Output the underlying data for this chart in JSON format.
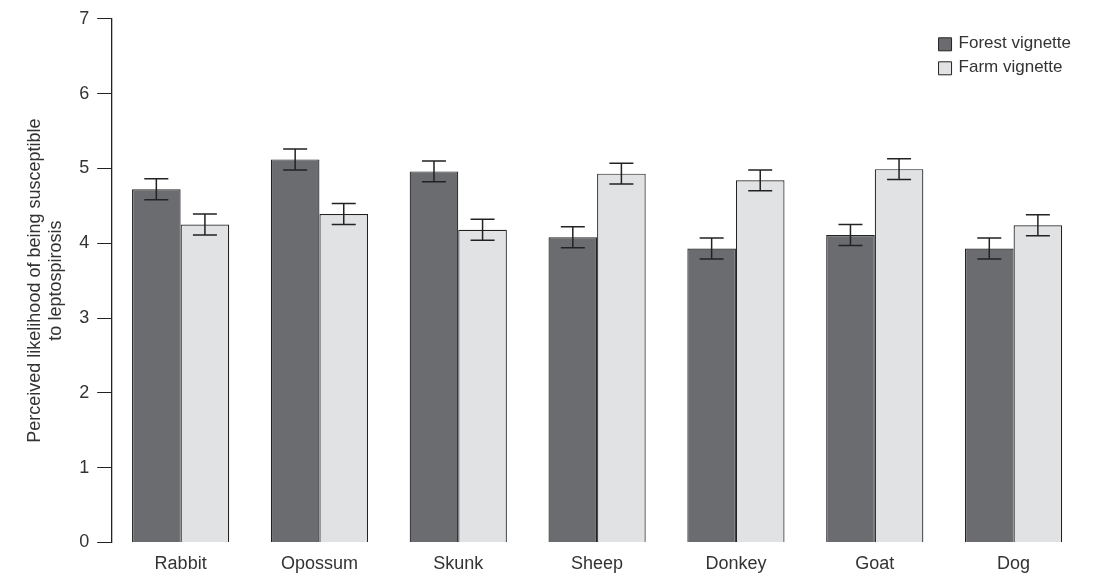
{
  "chart_data": {
    "type": "bar",
    "ylabel": "Perceived likelihood of being susceptible\nto leptospirosis",
    "categories": [
      "Rabbit",
      "Opossum",
      "Skunk",
      "Sheep",
      "Donkey",
      "Goat",
      "Dog"
    ],
    "series": [
      {
        "name": "Forest vignette",
        "color": "#6b6c70",
        "values": [
          4.72,
          5.12,
          4.96,
          4.08,
          3.93,
          4.11,
          3.93
        ],
        "errors": [
          0.14,
          0.14,
          0.14,
          0.14,
          0.14,
          0.14,
          0.14
        ]
      },
      {
        "name": "Farm vignette",
        "color": "#e1e2e4",
        "values": [
          4.25,
          4.39,
          4.18,
          4.93,
          4.84,
          4.99,
          4.24
        ],
        "errors": [
          0.14,
          0.14,
          0.14,
          0.14,
          0.14,
          0.14,
          0.14
        ]
      }
    ],
    "ylim": [
      0,
      7
    ],
    "yticks": [
      0,
      1,
      2,
      3,
      4,
      5,
      6,
      7
    ],
    "grid": false,
    "legend": "top right"
  }
}
